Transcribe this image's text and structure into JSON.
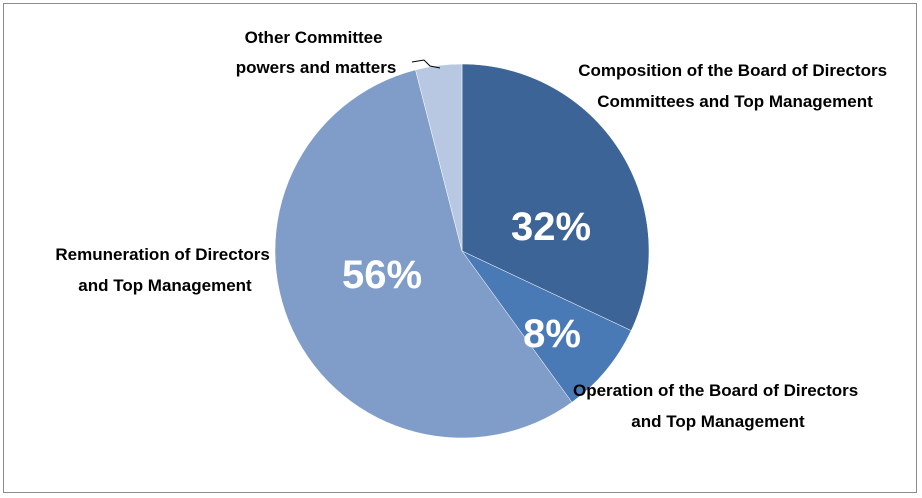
{
  "chart_data": {
    "type": "pie",
    "categories": [
      "Composition of the Board of Directors Committees and Top Management",
      "Operation of the Board of Directors and Top Management",
      "Remuneration of Directors and Top Management",
      "Other Committee powers and matters"
    ],
    "values": [
      32,
      8,
      56,
      4
    ],
    "data_labels": [
      "32%",
      "8%",
      "56%",
      ""
    ],
    "category_label_lines": [
      [
        "Composition of the Board of Directors",
        "Committees and Top Management"
      ],
      [
        "Operation of the Board of Directors",
        "and Top Management"
      ],
      [
        "Remuneration of Directors",
        "and Top Management"
      ],
      [
        "Other Committee",
        "powers and matters"
      ]
    ],
    "colors": [
      "#3d6496",
      "#4a7ab6",
      "#7f9dc8",
      "#b9c8e2"
    ],
    "start_angle_deg": 0,
    "direction": "clockwise",
    "legend": "none"
  }
}
